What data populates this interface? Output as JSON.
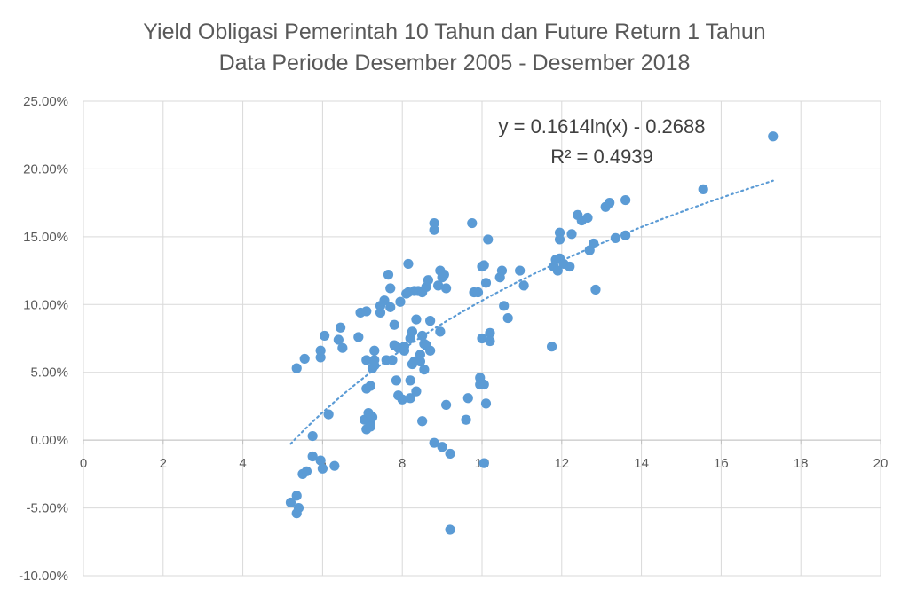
{
  "chart_data": {
    "type": "scatter",
    "title": "Yield Obligasi Pemerintah 10 Tahun dan Future Return 1 Tahun",
    "subtitle": "Data Periode Desember 2005 - Desember 2018",
    "xlabel": "",
    "ylabel": "",
    "xlim": [
      0,
      20
    ],
    "ylim": [
      -0.1,
      0.25
    ],
    "x_ticks": [
      0,
      2,
      4,
      6,
      8,
      10,
      12,
      14,
      16,
      18,
      20
    ],
    "y_ticks": [
      -0.1,
      -0.05,
      0.0,
      0.05,
      0.1,
      0.15,
      0.2,
      0.25
    ],
    "y_tick_labels": [
      "-10.00%",
      "-5.00%",
      "0.00%",
      "5.00%",
      "10.00%",
      "15.00%",
      "20.00%",
      "25.00%"
    ],
    "x_tick_labels": [
      "0",
      "2",
      "4",
      "6",
      "8",
      "10",
      "12",
      "14",
      "16",
      "18",
      "20"
    ],
    "grid": true,
    "legend": "none",
    "point_color": "#5b9bd5",
    "trendline": {
      "type": "logarithmic",
      "a": 0.1614,
      "b": -0.2688,
      "x_range": [
        5.2,
        17.3
      ],
      "equation": "y = 0.1614ln(x) - 0.2688",
      "r2": "R² = 0.4939"
    },
    "points": [
      [
        5.2,
        -0.046
      ],
      [
        5.35,
        -0.054
      ],
      [
        5.35,
        -0.041
      ],
      [
        5.4,
        -0.05
      ],
      [
        5.5,
        -0.025
      ],
      [
        5.6,
        -0.023
      ],
      [
        5.75,
        -0.012
      ],
      [
        5.75,
        0.003
      ],
      [
        5.95,
        -0.015
      ],
      [
        6.0,
        -0.021
      ],
      [
        6.3,
        -0.019
      ],
      [
        6.15,
        0.019
      ],
      [
        5.35,
        0.053
      ],
      [
        5.55,
        0.06
      ],
      [
        5.95,
        0.061
      ],
      [
        5.95,
        0.066
      ],
      [
        6.05,
        0.077
      ],
      [
        6.4,
        0.074
      ],
      [
        6.45,
        0.083
      ],
      [
        6.5,
        0.068
      ],
      [
        6.9,
        0.076
      ],
      [
        6.95,
        0.094
      ],
      [
        7.1,
        0.095
      ],
      [
        7.05,
        0.015
      ],
      [
        7.1,
        0.008
      ],
      [
        7.15,
        0.02
      ],
      [
        7.2,
        0.013
      ],
      [
        7.2,
        0.01
      ],
      [
        7.25,
        0.017
      ],
      [
        7.1,
        0.038
      ],
      [
        7.2,
        0.04
      ],
      [
        7.1,
        0.059
      ],
      [
        7.25,
        0.053
      ],
      [
        7.3,
        0.055
      ],
      [
        7.3,
        0.059
      ],
      [
        7.3,
        0.066
      ],
      [
        7.45,
        0.094
      ],
      [
        7.45,
        0.099
      ],
      [
        7.55,
        0.103
      ],
      [
        7.6,
        0.059
      ],
      [
        7.65,
        0.122
      ],
      [
        7.7,
        0.112
      ],
      [
        7.7,
        0.098
      ],
      [
        7.75,
        0.059
      ],
      [
        7.8,
        0.07
      ],
      [
        7.8,
        0.085
      ],
      [
        7.85,
        0.044
      ],
      [
        7.9,
        0.033
      ],
      [
        7.9,
        0.068
      ],
      [
        7.95,
        0.102
      ],
      [
        8.0,
        0.03
      ],
      [
        8.05,
        0.069
      ],
      [
        8.05,
        0.066
      ],
      [
        8.1,
        0.108
      ],
      [
        8.15,
        0.13
      ],
      [
        8.15,
        0.109
      ],
      [
        8.2,
        0.075
      ],
      [
        8.2,
        0.044
      ],
      [
        8.2,
        0.031
      ],
      [
        8.25,
        0.08
      ],
      [
        8.25,
        0.056
      ],
      [
        8.3,
        0.11
      ],
      [
        8.3,
        0.058
      ],
      [
        8.35,
        0.089
      ],
      [
        8.35,
        0.036
      ],
      [
        8.4,
        0.11
      ],
      [
        8.45,
        0.063
      ],
      [
        8.45,
        0.058
      ],
      [
        8.5,
        0.077
      ],
      [
        8.5,
        0.014
      ],
      [
        8.5,
        0.109
      ],
      [
        8.55,
        0.052
      ],
      [
        8.55,
        0.071
      ],
      [
        8.6,
        0.07
      ],
      [
        8.6,
        0.113
      ],
      [
        8.65,
        0.118
      ],
      [
        8.7,
        0.088
      ],
      [
        8.7,
        0.066
      ],
      [
        8.8,
        0.155
      ],
      [
        8.8,
        0.16
      ],
      [
        8.8,
        -0.002
      ],
      [
        8.9,
        0.114
      ],
      [
        8.95,
        0.08
      ],
      [
        8.95,
        0.125
      ],
      [
        9.0,
        0.12
      ],
      [
        9.0,
        -0.005
      ],
      [
        9.05,
        0.122
      ],
      [
        9.1,
        0.026
      ],
      [
        9.1,
        0.112
      ],
      [
        9.2,
        -0.01
      ],
      [
        9.2,
        -0.066
      ],
      [
        9.6,
        0.015
      ],
      [
        9.65,
        0.031
      ],
      [
        9.75,
        0.16
      ],
      [
        9.8,
        0.109
      ],
      [
        9.9,
        0.109
      ],
      [
        9.95,
        0.046
      ],
      [
        9.95,
        0.041
      ],
      [
        10.0,
        0.075
      ],
      [
        10.05,
        0.129
      ],
      [
        10.0,
        0.128
      ],
      [
        10.05,
        0.041
      ],
      [
        10.05,
        -0.017
      ],
      [
        10.1,
        0.116
      ],
      [
        10.1,
        0.027
      ],
      [
        10.15,
        0.148
      ],
      [
        10.2,
        0.079
      ],
      [
        10.2,
        0.073
      ],
      [
        10.45,
        0.12
      ],
      [
        10.5,
        0.125
      ],
      [
        10.55,
        0.099
      ],
      [
        10.65,
        0.09
      ],
      [
        10.95,
        0.125
      ],
      [
        11.05,
        0.114
      ],
      [
        11.75,
        0.069
      ],
      [
        11.8,
        0.128
      ],
      [
        11.85,
        0.133
      ],
      [
        11.9,
        0.125
      ],
      [
        11.95,
        0.153
      ],
      [
        11.95,
        0.148
      ],
      [
        11.95,
        0.134
      ],
      [
        12.05,
        0.13
      ],
      [
        12.2,
        0.128
      ],
      [
        12.25,
        0.152
      ],
      [
        12.4,
        0.166
      ],
      [
        12.5,
        0.162
      ],
      [
        12.65,
        0.164
      ],
      [
        12.7,
        0.14
      ],
      [
        12.8,
        0.145
      ],
      [
        12.85,
        0.111
      ],
      [
        13.1,
        0.172
      ],
      [
        13.2,
        0.175
      ],
      [
        13.35,
        0.149
      ],
      [
        13.6,
        0.151
      ],
      [
        13.6,
        0.177
      ],
      [
        15.55,
        0.185
      ],
      [
        17.3,
        0.224
      ]
    ]
  }
}
